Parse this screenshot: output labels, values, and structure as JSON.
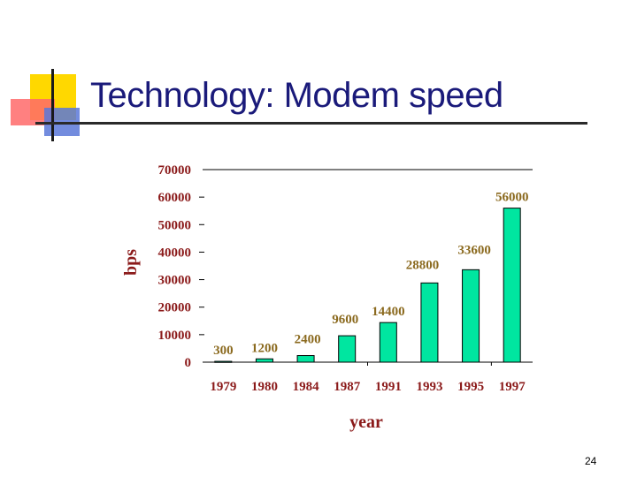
{
  "slide": {
    "title": "Technology: Modem speed",
    "page_number": "24"
  },
  "colors": {
    "bar": "#00e6a0",
    "title": "#1a1a7a",
    "data_label": "#8b6a1f",
    "axis_text": "#8b1a1a"
  },
  "chart_data": {
    "type": "bar",
    "categories": [
      "1979",
      "1980",
      "1984",
      "1987",
      "1991",
      "1993",
      "1995",
      "1997"
    ],
    "values": [
      300,
      1200,
      2400,
      9600,
      14400,
      28800,
      33600,
      56000
    ],
    "data_labels": [
      "300",
      "1200",
      "2400",
      "9600",
      "14400",
      "28800",
      "33600",
      "56000"
    ],
    "ylabel": "bps",
    "xlabel": "year",
    "ylim": [
      0,
      70000
    ],
    "yticks": [
      "0",
      "10000",
      "20000",
      "30000",
      "40000",
      "50000",
      "60000",
      "70000"
    ],
    "grid": false,
    "legend": "none"
  }
}
